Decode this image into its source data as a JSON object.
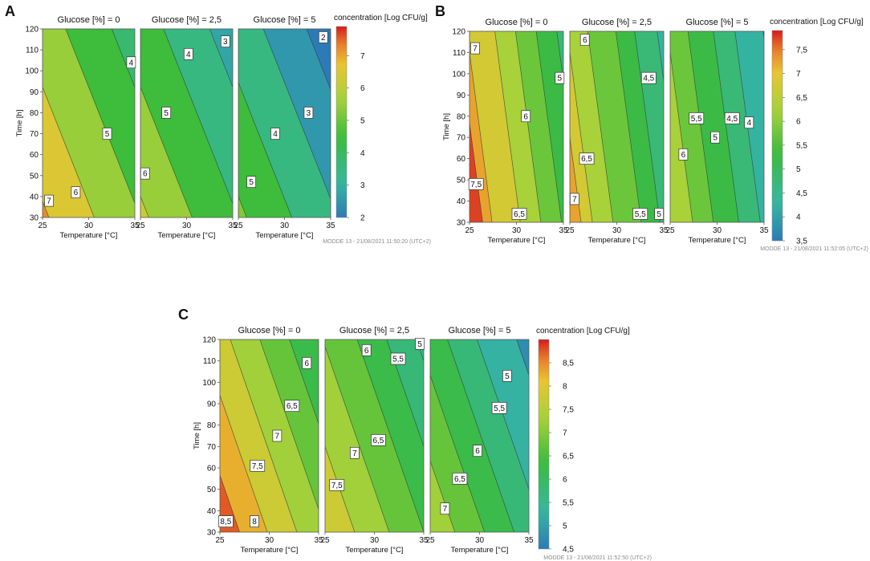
{
  "figure_labels": [
    "A",
    "B",
    "C"
  ],
  "watermarks": [
    "MODDE 13 - 21/08/2021 11:50:20 (UTC+2)",
    "MODDE 13 - 21/08/2021 11:52:05 (UTC+2)",
    "MODDE 13 - 21/08/2021 11:52:50 (UTC+2)"
  ],
  "colors": {
    "red": "#d7191c",
    "orange": "#e6762a",
    "yellow": "#e9c531",
    "lime": "#a6d13a",
    "green": "#3cbc3c",
    "teal": "#36b6a0",
    "blue": "#2c7bb6"
  },
  "chart_data": [
    {
      "type": "contour",
      "id": "A",
      "panel_titles": [
        "Glucose [%] = 0",
        "Glucose [%] = 2,5",
        "Glucose [%] = 5"
      ],
      "xlabel": "Temperature [°C]",
      "ylabel": "Time [h]",
      "xlim": [
        25,
        35
      ],
      "xticks": [
        25,
        30,
        35
      ],
      "xtick_labels": [
        "25",
        "30",
        "35"
      ],
      "ylim": [
        30,
        120
      ],
      "yticks": [
        30,
        40,
        50,
        60,
        70,
        80,
        90,
        100,
        110,
        120
      ],
      "colorbar_title": "concentration [Log CFU/g]",
      "colorbar_range": [
        2,
        7.9
      ],
      "colorbar_ticks": [
        2,
        3,
        4,
        5,
        6,
        7
      ],
      "colorbar_tick_labels": [
        "2",
        "3",
        "4",
        "5",
        "6",
        "7"
      ],
      "contour_slope_c_per_h": -0.09,
      "panels": [
        {
          "glucose": 0,
          "contours": [
            {
              "level": "7",
              "t0": 25.7
            },
            {
              "level": "6",
              "t0": 30.6
            },
            {
              "level": "5",
              "t0": 35.6
            },
            {
              "level": "4",
              "t0": 40.6
            }
          ],
          "labels": [
            {
              "text": "7",
              "x": 25.7,
              "y": 38
            },
            {
              "text": "6",
              "x": 28.6,
              "y": 42
            },
            {
              "text": "5",
              "x": 32.0,
              "y": 70
            },
            {
              "text": "4",
              "x": 34.6,
              "y": 104
            }
          ]
        },
        {
          "glucose": 2.5,
          "contours": [
            {
              "level": "6",
              "t0": 25.9
            },
            {
              "level": "5",
              "t0": 30.6
            },
            {
              "level": "4",
              "t0": 35.6
            },
            {
              "level": "3",
              "t0": 40.6
            }
          ],
          "labels": [
            {
              "text": "6",
              "x": 25.5,
              "y": 51
            },
            {
              "text": "5",
              "x": 27.8,
              "y": 80
            },
            {
              "text": "4",
              "x": 30.2,
              "y": 108
            },
            {
              "text": "3",
              "x": 34.2,
              "y": 114
            }
          ]
        },
        {
          "glucose": 5,
          "contours": [
            {
              "level": "5",
              "t0": 25.9
            },
            {
              "level": "4",
              "t0": 30.8
            },
            {
              "level": "3",
              "t0": 35.8
            },
            {
              "level": "2",
              "t0": 40.5
            }
          ],
          "labels": [
            {
              "text": "5",
              "x": 26.4,
              "y": 47
            },
            {
              "text": "4",
              "x": 29.0,
              "y": 70
            },
            {
              "text": "3",
              "x": 32.6,
              "y": 80
            },
            {
              "text": "2",
              "x": 34.2,
              "y": 116
            }
          ]
        }
      ]
    },
    {
      "type": "contour",
      "id": "B",
      "panel_titles": [
        "Glucose [%] = 0",
        "Glucose [%] = 2,5",
        "Glucose [%] = 5"
      ],
      "xlabel": "Temperature [°C]",
      "ylabel": "Time [h]",
      "xlim": [
        25,
        35
      ],
      "xticks": [
        25,
        30,
        35
      ],
      "xtick_labels": [
        "25",
        "30",
        "35"
      ],
      "ylim": [
        30,
        120
      ],
      "yticks": [
        30,
        40,
        50,
        60,
        70,
        80,
        90,
        100,
        110,
        120
      ],
      "colorbar_title": "concentration [Log CFU/g]",
      "colorbar_range": [
        3.5,
        7.9
      ],
      "colorbar_ticks": [
        3.5,
        4,
        4.5,
        5,
        5.5,
        6,
        6.5,
        7,
        7.5
      ],
      "colorbar_tick_labels": [
        "3,5",
        "4",
        "4,5",
        "5",
        "5,5",
        "6",
        "6,5",
        "7",
        "7,5"
      ],
      "contour_slope_c_per_h": -0.03,
      "panels": [
        {
          "glucose": 0,
          "contours": [
            {
              "level": "7,5",
              "t0": 26.4
            },
            {
              "level": "7",
              "t0": 27.4
            },
            {
              "level": "6,5",
              "t0": 30.4
            },
            {
              "level": "6",
              "t0": 32.6
            },
            {
              "level": "5,5",
              "t0": 34.8
            },
            {
              "level": "5",
              "t0": 37.0
            }
          ],
          "labels": [
            {
              "text": "7,5",
              "x": 25.7,
              "y": 48
            },
            {
              "text": "7",
              "x": 25.6,
              "y": 112
            },
            {
              "text": "6,5",
              "x": 30.3,
              "y": 34
            },
            {
              "text": "6",
              "x": 31.0,
              "y": 80
            },
            {
              "text": "5",
              "x": 34.6,
              "y": 98
            }
          ]
        },
        {
          "glucose": 2.5,
          "contours": [
            {
              "level": "7",
              "t0": 26.2
            },
            {
              "level": "6,5",
              "t0": 27.4
            },
            {
              "level": "6",
              "t0": 29.6
            },
            {
              "level": "5,5",
              "t0": 32.6
            },
            {
              "level": "5",
              "t0": 34.6
            },
            {
              "level": "4,5",
              "t0": 37.0
            }
          ],
          "labels": [
            {
              "text": "7",
              "x": 25.5,
              "y": 41
            },
            {
              "text": "6,5",
              "x": 26.8,
              "y": 60
            },
            {
              "text": "6",
              "x": 26.6,
              "y": 116
            },
            {
              "text": "5,5",
              "x": 32.5,
              "y": 34
            },
            {
              "text": "5",
              "x": 34.5,
              "y": 34
            },
            {
              "text": "4,5",
              "x": 33.4,
              "y": 98
            }
          ]
        },
        {
          "glucose": 5,
          "contours": [
            {
              "level": "6",
              "t0": 27.4
            },
            {
              "level": "5,5",
              "t0": 29.6
            },
            {
              "level": "5",
              "t0": 32.3
            },
            {
              "level": "4,5",
              "t0": 34.6
            },
            {
              "level": "4",
              "t0": 37.6
            }
          ],
          "labels": [
            {
              "text": "6",
              "x": 26.4,
              "y": 62
            },
            {
              "text": "5,5",
              "x": 27.8,
              "y": 79
            },
            {
              "text": "5",
              "x": 29.8,
              "y": 70
            },
            {
              "text": "4,5",
              "x": 31.6,
              "y": 79
            },
            {
              "text": "4",
              "x": 33.4,
              "y": 77
            }
          ]
        }
      ]
    },
    {
      "type": "contour",
      "id": "C",
      "panel_titles": [
        "Glucose [%] = 0",
        "Glucose [%] = 2,5",
        "Glucose [%] = 5"
      ],
      "xlabel": "Temperature [°C]",
      "ylabel": "Time [h]",
      "xlim": [
        25,
        35
      ],
      "xticks": [
        25,
        30,
        35
      ],
      "xtick_labels": [
        "25",
        "30",
        "35"
      ],
      "ylim": [
        30,
        120
      ],
      "yticks": [
        30,
        40,
        50,
        60,
        70,
        80,
        90,
        100,
        110,
        120
      ],
      "colorbar_title": "concentration [Log CFU/g]",
      "colorbar_range": [
        4.5,
        9
      ],
      "colorbar_ticks": [
        4.5,
        5,
        5.5,
        6,
        6.5,
        7,
        7.5,
        8,
        8.5
      ],
      "colorbar_tick_labels": [
        "4,5",
        "5",
        "5,5",
        "6",
        "6,5",
        "7",
        "7,5",
        "8",
        "8,5"
      ],
      "contour_slope_c_per_h": -0.075,
      "panels": [
        {
          "glucose": 0,
          "contours": [
            {
              "level": "8,5",
              "t0": 27.0
            },
            {
              "level": "8",
              "t0": 29.8
            },
            {
              "level": "7,5",
              "t0": 32.8
            },
            {
              "level": "7",
              "t0": 35.8
            },
            {
              "level": "6,5",
              "t0": 38.8
            },
            {
              "level": "6",
              "t0": 41.8
            }
          ],
          "labels": [
            {
              "text": "8,5",
              "x": 25.6,
              "y": 35
            },
            {
              "text": "8",
              "x": 28.5,
              "y": 35
            },
            {
              "text": "7,5",
              "x": 28.8,
              "y": 61
            },
            {
              "text": "7",
              "x": 30.8,
              "y": 75
            },
            {
              "text": "6,5",
              "x": 32.3,
              "y": 89
            },
            {
              "text": "6",
              "x": 33.8,
              "y": 109
            }
          ]
        },
        {
          "glucose": 2.5,
          "contours": [
            {
              "level": "7,5",
              "t0": 28.0
            },
            {
              "level": "7",
              "t0": 31.5
            },
            {
              "level": "6,5",
              "t0": 35.0
            },
            {
              "level": "6",
              "t0": 38.0
            },
            {
              "level": "5,5",
              "t0": 41.0
            },
            {
              "level": "5",
              "t0": 42.0
            }
          ],
          "labels": [
            {
              "text": "7,5",
              "x": 26.2,
              "y": 52
            },
            {
              "text": "7",
              "x": 28.0,
              "y": 67
            },
            {
              "text": "6,5",
              "x": 30.4,
              "y": 73
            },
            {
              "text": "6",
              "x": 29.2,
              "y": 115
            },
            {
              "text": "5,5",
              "x": 32.4,
              "y": 111
            },
            {
              "text": "5",
              "x": 34.6,
              "y": 118
            }
          ]
        },
        {
          "glucose": 5,
          "contours": [
            {
              "level": "7",
              "t0": 27.5
            },
            {
              "level": "6,5",
              "t0": 30.5
            },
            {
              "level": "6",
              "t0": 33.5
            },
            {
              "level": "5,5",
              "t0": 36.5
            },
            {
              "level": "5",
              "t0": 40.5
            },
            {
              "level": "4,5",
              "t0": 44.0
            }
          ],
          "labels": [
            {
              "text": "7",
              "x": 26.5,
              "y": 41
            },
            {
              "text": "6,5",
              "x": 28.0,
              "y": 55
            },
            {
              "text": "6",
              "x": 29.8,
              "y": 68
            },
            {
              "text": "5,5",
              "x": 32.0,
              "y": 88
            },
            {
              "text": "5",
              "x": 32.8,
              "y": 103
            }
          ]
        }
      ]
    }
  ]
}
